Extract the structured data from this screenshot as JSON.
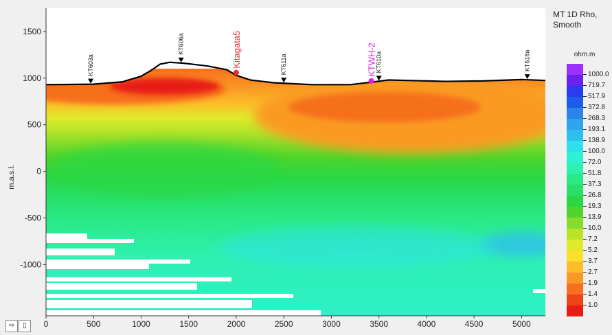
{
  "chart_data": {
    "type": "heatmap",
    "title": "MT 1D Rho, Smooth",
    "ylabel": "m.a.s.l.",
    "xlabel": "",
    "xlim": [
      0,
      5250
    ],
    "ylim": [
      -1550,
      1750
    ],
    "x_ticks": [
      0,
      500,
      1000,
      1500,
      2000,
      2500,
      3000,
      3500,
      4000,
      4500,
      5000
    ],
    "y_ticks": [
      -1000,
      -500,
      0,
      500,
      1000,
      1500
    ],
    "colorbar": {
      "units": "ohm.m",
      "labels": [
        "1000.0",
        "719.7",
        "517.9",
        "372.8",
        "268.3",
        "193.1",
        "138.9",
        "100.0",
        "72.0",
        "51.8",
        "37.3",
        "26.8",
        "19.3",
        "13.9",
        "10.0",
        "7.2",
        "5.2",
        "3.7",
        "2.7",
        "1.9",
        "1.4",
        "1.0"
      ],
      "colors": [
        "#9b30ff",
        "#6a22ee",
        "#2a3cf0",
        "#1e5cec",
        "#2a84ec",
        "#2ea4ef",
        "#2ebfee",
        "#2ee0ee",
        "#2ef0d4",
        "#2ef0b0",
        "#2aea88",
        "#28e06a",
        "#2ad844",
        "#4ed42a",
        "#86dc2a",
        "#b8e42a",
        "#e0ea2a",
        "#f8e12a",
        "#fcbd28",
        "#fa9a24",
        "#f6701e",
        "#ee4418",
        "#e81c14"
      ]
    },
    "topography": [
      [
        0,
        930
      ],
      [
        500,
        935
      ],
      [
        800,
        960
      ],
      [
        1000,
        1020
      ],
      [
        1100,
        1080
      ],
      [
        1200,
        1150
      ],
      [
        1300,
        1170
      ],
      [
        1450,
        1160
      ],
      [
        1700,
        1130
      ],
      [
        1900,
        1090
      ],
      [
        2000,
        1030
      ],
      [
        2150,
        980
      ],
      [
        2400,
        950
      ],
      [
        2500,
        945
      ],
      [
        2800,
        930
      ],
      [
        3200,
        930
      ],
      [
        3450,
        960
      ],
      [
        3600,
        980
      ],
      [
        3800,
        975
      ],
      [
        4200,
        965
      ],
      [
        4600,
        970
      ],
      [
        5000,
        985
      ],
      [
        5250,
        975
      ]
    ],
    "wells": [
      {
        "name": "KT603a",
        "x": 470
      },
      {
        "name": "KT606a",
        "x": 1420
      },
      {
        "name": "KT611a",
        "x": 2500
      },
      {
        "name": "KT610a",
        "x": 3500
      },
      {
        "name": "KT618a",
        "x": 5060
      }
    ],
    "annotations": [
      {
        "text": "Kitagata5",
        "x": 2000,
        "y": 1060,
        "color": "#e83030"
      },
      {
        "text": "KTWH-2",
        "x": 3420,
        "y": 970,
        "color": "#e020e0"
      }
    ]
  },
  "toolbar": {
    "icons": [
      "export-icon",
      "log-icon"
    ]
  }
}
